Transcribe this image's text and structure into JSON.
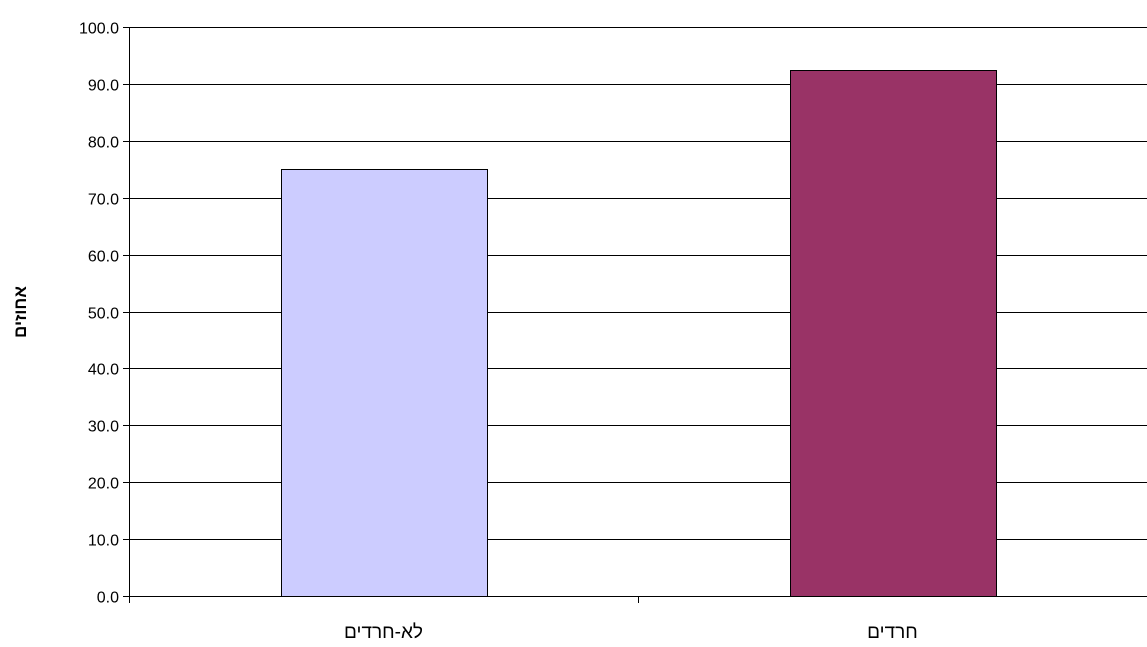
{
  "chart_data": {
    "type": "bar",
    "categories": [
      "לא-חרדים",
      "חרדים"
    ],
    "values": [
      75.0,
      92.5
    ],
    "bar_colors": [
      "#CCCCFF",
      "#993366"
    ],
    "ylabel": "אחוזים",
    "xlabel": "",
    "ylim": [
      0,
      100
    ],
    "y_ticks": [
      0,
      10,
      20,
      30,
      40,
      50,
      60,
      70,
      80,
      90,
      100
    ],
    "y_tick_labels": [
      "0.0",
      "10.0",
      "20.0",
      "30.0",
      "40.0",
      "50.0",
      "60.0",
      "70.0",
      "80.0",
      "90.0",
      "100.0"
    ],
    "grid": true,
    "legend": "none"
  },
  "colors": {
    "gridline": "#000000",
    "axis": "#000000",
    "bar_outline": "#000000",
    "background": "#FFFFFF"
  }
}
